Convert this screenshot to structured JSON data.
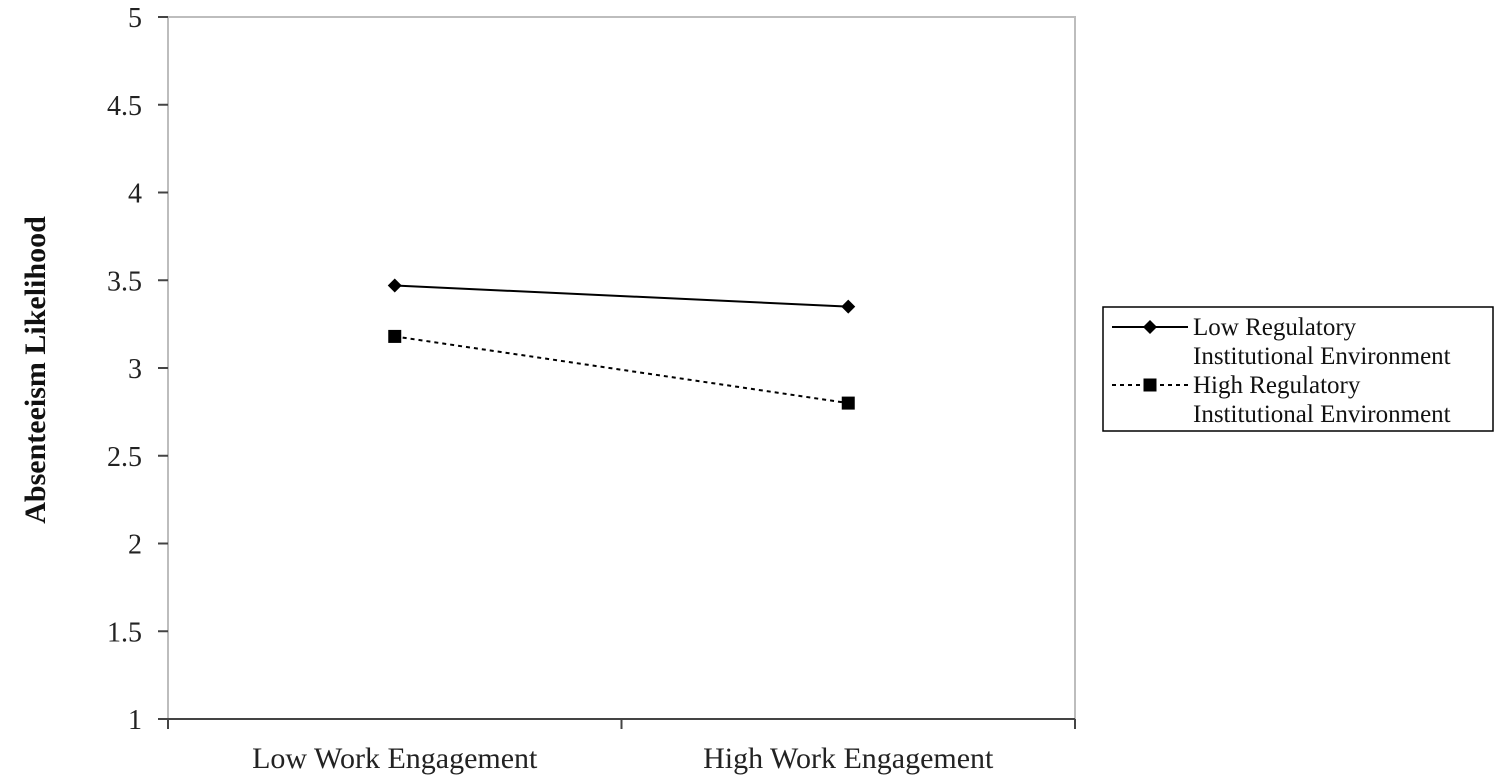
{
  "chart_data": {
    "type": "line",
    "categories": [
      "Low Work Engagement",
      "High Work Engagement"
    ],
    "series": [
      {
        "name_lines": [
          "Low Regulatory",
          "Institutional Environment"
        ],
        "values": [
          3.47,
          3.35
        ],
        "marker": "diamond",
        "line_style": "solid",
        "color": "#000000"
      },
      {
        "name_lines": [
          "High Regulatory",
          "Institutional Environment"
        ],
        "values": [
          3.18,
          2.8
        ],
        "marker": "square",
        "line_style": "dotted",
        "color": "#000000"
      }
    ],
    "xlabel": "",
    "ylabel": "Absenteeism Likelihood",
    "ylim": [
      1,
      5
    ],
    "yticks": [
      "1",
      "1.5",
      "2",
      "2.5",
      "3",
      "3.5",
      "4",
      "4.5",
      "5"
    ],
    "grid": false,
    "legend_position": "right"
  }
}
